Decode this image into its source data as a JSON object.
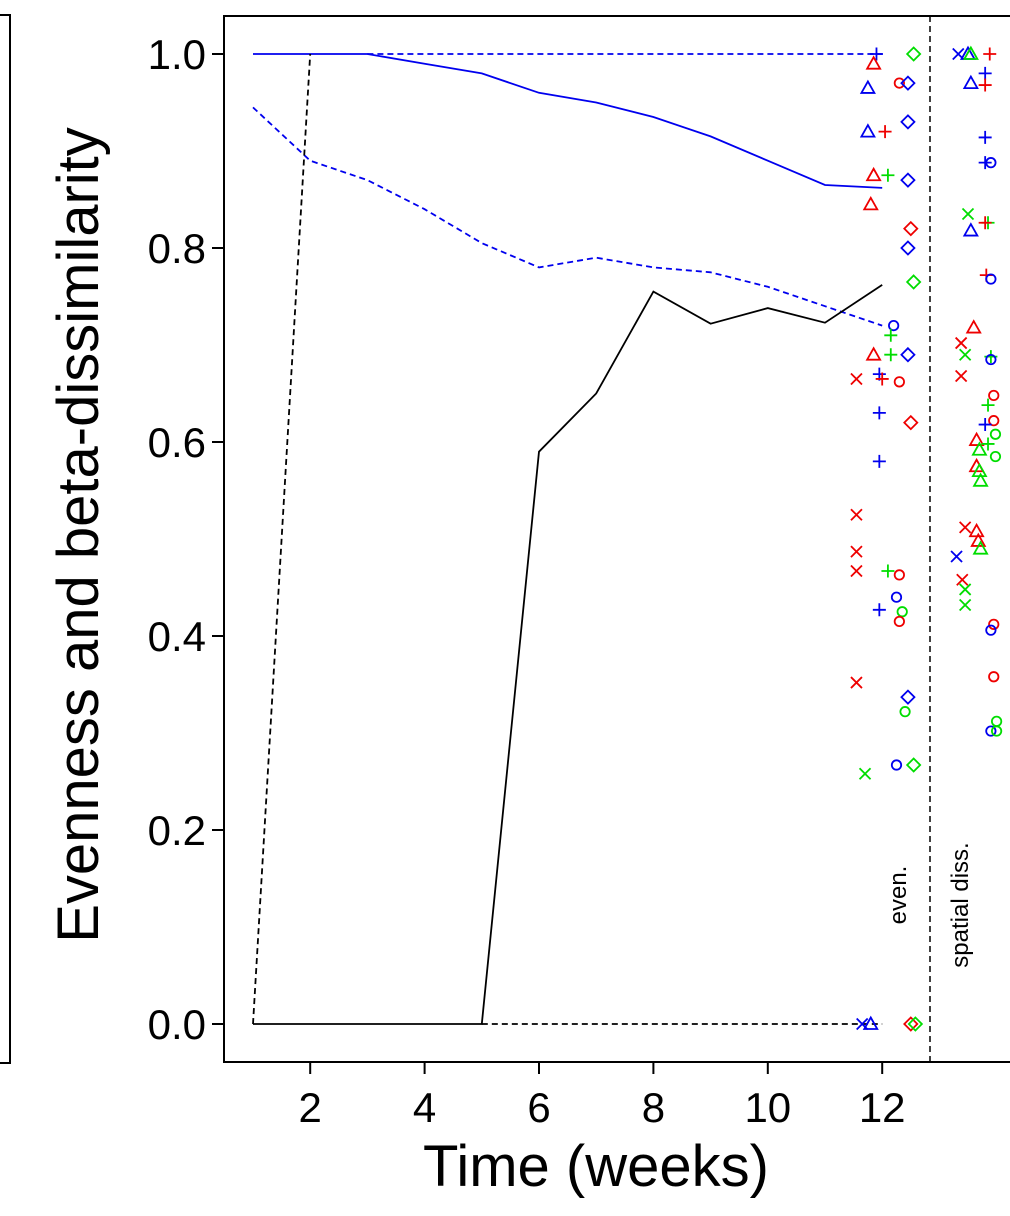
{
  "chart_data": {
    "type": "line",
    "xlabel": "Time (weeks)",
    "ylabel": "Evenness and beta-dissimilarity",
    "xlim": [
      0,
      13.6
    ],
    "ylim": [
      -0.03,
      1.04
    ],
    "xticks": [
      2,
      4,
      6,
      8,
      10,
      12
    ],
    "yticks": [
      0.0,
      0.2,
      0.4,
      0.6,
      0.8,
      1.0
    ],
    "xtick_labels": [
      "2",
      "4",
      "6",
      "8",
      "10",
      "12"
    ],
    "ytick_labels": [
      "0.0",
      "0.2",
      "0.4",
      "0.6",
      "0.8",
      "1.0"
    ],
    "grid": false,
    "panel_labels": [
      "even.",
      "spatial diss."
    ],
    "series": [
      {
        "style": "solid",
        "color": "#0000ee",
        "x": [
          1,
          2,
          3,
          4,
          5,
          6,
          7,
          8,
          9,
          10,
          11,
          12
        ],
        "y": [
          1.0,
          1.0,
          1.0,
          0.99,
          0.98,
          0.96,
          0.95,
          0.935,
          0.915,
          0.89,
          0.865,
          0.862
        ]
      },
      {
        "style": "dashed",
        "color": "#0000ee",
        "x": [
          1,
          2,
          3,
          4,
          5,
          6,
          7,
          8,
          9,
          10,
          11,
          12
        ],
        "y": [
          0.945,
          0.89,
          0.87,
          0.84,
          0.805,
          0.78,
          0.79,
          0.78,
          0.775,
          0.76,
          0.74,
          0.72
        ]
      },
      {
        "style": "dashed",
        "color": "#0000ee",
        "x": [
          3,
          12
        ],
        "y": [
          1.0,
          1.0
        ]
      },
      {
        "style": "solid",
        "color": "#000000",
        "x": [
          1,
          2,
          3,
          4,
          5,
          6,
          7,
          8,
          9,
          10,
          11,
          12
        ],
        "y": [
          0.0,
          0.0,
          0.0,
          0.0,
          0.0,
          0.59,
          0.65,
          0.755,
          0.722,
          0.738,
          0.723,
          0.762
        ]
      },
      {
        "style": "dashed",
        "color": "#000000",
        "x": [
          1,
          2
        ],
        "y": [
          0.0,
          1.0
        ]
      },
      {
        "style": "dashed",
        "color": "#000000",
        "x": [
          5,
          12
        ],
        "y": [
          0.0,
          0.0
        ]
      }
    ],
    "scatter_colors": {
      "red": "#ee0000",
      "blue": "#0000ee",
      "green": "#00dd00"
    },
    "scatter_points": [
      {
        "x": 11.9,
        "y": 1.0,
        "shape": "plus",
        "color": "blue"
      },
      {
        "x": 12.55,
        "y": 1.0,
        "shape": "diamond",
        "color": "green"
      },
      {
        "x": 11.85,
        "y": 0.99,
        "shape": "triangle",
        "color": "red"
      },
      {
        "x": 12.3,
        "y": 0.97,
        "shape": "circle",
        "color": "red"
      },
      {
        "x": 12.45,
        "y": 0.97,
        "shape": "diamond",
        "color": "blue"
      },
      {
        "x": 11.75,
        "y": 0.965,
        "shape": "triangle",
        "color": "blue"
      },
      {
        "x": 12.45,
        "y": 0.93,
        "shape": "diamond",
        "color": "blue"
      },
      {
        "x": 11.75,
        "y": 0.92,
        "shape": "triangle",
        "color": "blue"
      },
      {
        "x": 12.05,
        "y": 0.92,
        "shape": "plus",
        "color": "red"
      },
      {
        "x": 11.85,
        "y": 0.875,
        "shape": "triangle",
        "color": "red"
      },
      {
        "x": 12.1,
        "y": 0.875,
        "shape": "plus",
        "color": "green"
      },
      {
        "x": 12.45,
        "y": 0.87,
        "shape": "diamond",
        "color": "blue"
      },
      {
        "x": 11.8,
        "y": 0.845,
        "shape": "triangle",
        "color": "red"
      },
      {
        "x": 12.5,
        "y": 0.82,
        "shape": "diamond",
        "color": "red"
      },
      {
        "x": 12.45,
        "y": 0.8,
        "shape": "diamond",
        "color": "blue"
      },
      {
        "x": 12.55,
        "y": 0.765,
        "shape": "diamond",
        "color": "green"
      },
      {
        "x": 12.2,
        "y": 0.72,
        "shape": "circle",
        "color": "blue"
      },
      {
        "x": 12.15,
        "y": 0.71,
        "shape": "plus",
        "color": "green"
      },
      {
        "x": 11.85,
        "y": 0.69,
        "shape": "triangle",
        "color": "red"
      },
      {
        "x": 12.15,
        "y": 0.69,
        "shape": "plus",
        "color": "green"
      },
      {
        "x": 12.45,
        "y": 0.69,
        "shape": "diamond",
        "color": "blue"
      },
      {
        "x": 11.55,
        "y": 0.665,
        "shape": "cross",
        "color": "red"
      },
      {
        "x": 11.95,
        "y": 0.67,
        "shape": "plus",
        "color": "blue"
      },
      {
        "x": 12.0,
        "y": 0.665,
        "shape": "plus",
        "color": "red"
      },
      {
        "x": 12.3,
        "y": 0.662,
        "shape": "circle",
        "color": "red"
      },
      {
        "x": 11.95,
        "y": 0.63,
        "shape": "plus",
        "color": "blue"
      },
      {
        "x": 12.5,
        "y": 0.62,
        "shape": "diamond",
        "color": "red"
      },
      {
        "x": 11.95,
        "y": 0.58,
        "shape": "plus",
        "color": "blue"
      },
      {
        "x": 11.55,
        "y": 0.525,
        "shape": "cross",
        "color": "red"
      },
      {
        "x": 11.55,
        "y": 0.487,
        "shape": "cross",
        "color": "red"
      },
      {
        "x": 11.55,
        "y": 0.467,
        "shape": "cross",
        "color": "red"
      },
      {
        "x": 12.1,
        "y": 0.467,
        "shape": "plus",
        "color": "green"
      },
      {
        "x": 12.3,
        "y": 0.463,
        "shape": "circle",
        "color": "red"
      },
      {
        "x": 12.25,
        "y": 0.44,
        "shape": "circle",
        "color": "blue"
      },
      {
        "x": 11.95,
        "y": 0.427,
        "shape": "plus",
        "color": "blue"
      },
      {
        "x": 12.35,
        "y": 0.425,
        "shape": "circle",
        "color": "green"
      },
      {
        "x": 12.3,
        "y": 0.415,
        "shape": "circle",
        "color": "red"
      },
      {
        "x": 11.55,
        "y": 0.352,
        "shape": "cross",
        "color": "red"
      },
      {
        "x": 12.45,
        "y": 0.337,
        "shape": "diamond",
        "color": "blue"
      },
      {
        "x": 12.4,
        "y": 0.322,
        "shape": "circle",
        "color": "green"
      },
      {
        "x": 12.25,
        "y": 0.267,
        "shape": "circle",
        "color": "blue"
      },
      {
        "x": 12.55,
        "y": 0.267,
        "shape": "diamond",
        "color": "green"
      },
      {
        "x": 11.7,
        "y": 0.258,
        "shape": "cross",
        "color": "green"
      },
      {
        "x": 11.65,
        "y": 0.0,
        "shape": "cross",
        "color": "blue"
      },
      {
        "x": 11.8,
        "y": 0.0,
        "shape": "triangle",
        "color": "blue"
      },
      {
        "x": 12.5,
        "y": 0.0,
        "shape": "diamond",
        "color": "red"
      },
      {
        "x": 12.58,
        "y": 0.0,
        "shape": "diamond",
        "color": "green"
      },
      {
        "x": 13.33,
        "y": 1.0,
        "shape": "cross",
        "color": "blue"
      },
      {
        "x": 13.5,
        "y": 1.0,
        "shape": "triangle",
        "color": "blue"
      },
      {
        "x": 13.55,
        "y": 1.0,
        "shape": "triangle",
        "color": "green"
      },
      {
        "x": 13.88,
        "y": 1.0,
        "shape": "plus",
        "color": "red"
      },
      {
        "x": 13.8,
        "y": 0.98,
        "shape": "plus",
        "color": "blue"
      },
      {
        "x": 13.55,
        "y": 0.97,
        "shape": "triangle",
        "color": "blue"
      },
      {
        "x": 13.8,
        "y": 0.968,
        "shape": "plus",
        "color": "red"
      },
      {
        "x": 13.8,
        "y": 0.914,
        "shape": "plus",
        "color": "blue"
      },
      {
        "x": 13.8,
        "y": 0.888,
        "shape": "plus",
        "color": "blue"
      },
      {
        "x": 13.9,
        "y": 0.888,
        "shape": "circle",
        "color": "blue"
      },
      {
        "x": 13.5,
        "y": 0.835,
        "shape": "cross",
        "color": "green"
      },
      {
        "x": 13.55,
        "y": 0.818,
        "shape": "triangle",
        "color": "blue"
      },
      {
        "x": 13.85,
        "y": 0.826,
        "shape": "plus",
        "color": "green"
      },
      {
        "x": 13.8,
        "y": 0.826,
        "shape": "plus",
        "color": "red"
      },
      {
        "x": 13.82,
        "y": 0.772,
        "shape": "plus",
        "color": "red"
      },
      {
        "x": 13.9,
        "y": 0.768,
        "shape": "circle",
        "color": "blue"
      },
      {
        "x": 13.6,
        "y": 0.718,
        "shape": "triangle",
        "color": "red"
      },
      {
        "x": 13.38,
        "y": 0.702,
        "shape": "cross",
        "color": "red"
      },
      {
        "x": 13.45,
        "y": 0.69,
        "shape": "cross",
        "color": "green"
      },
      {
        "x": 13.9,
        "y": 0.688,
        "shape": "plus",
        "color": "green"
      },
      {
        "x": 13.9,
        "y": 0.685,
        "shape": "circle",
        "color": "blue"
      },
      {
        "x": 13.38,
        "y": 0.668,
        "shape": "cross",
        "color": "red"
      },
      {
        "x": 13.95,
        "y": 0.648,
        "shape": "circle",
        "color": "red"
      },
      {
        "x": 13.85,
        "y": 0.638,
        "shape": "plus",
        "color": "green"
      },
      {
        "x": 13.95,
        "y": 0.622,
        "shape": "circle",
        "color": "red"
      },
      {
        "x": 13.8,
        "y": 0.618,
        "shape": "plus",
        "color": "blue"
      },
      {
        "x": 13.98,
        "y": 0.608,
        "shape": "circle",
        "color": "green"
      },
      {
        "x": 13.65,
        "y": 0.602,
        "shape": "triangle",
        "color": "red"
      },
      {
        "x": 13.85,
        "y": 0.598,
        "shape": "plus",
        "color": "green"
      },
      {
        "x": 13.7,
        "y": 0.592,
        "shape": "triangle",
        "color": "green"
      },
      {
        "x": 13.98,
        "y": 0.585,
        "shape": "circle",
        "color": "green"
      },
      {
        "x": 13.65,
        "y": 0.575,
        "shape": "triangle",
        "color": "red"
      },
      {
        "x": 13.7,
        "y": 0.57,
        "shape": "triangle",
        "color": "green"
      },
      {
        "x": 13.72,
        "y": 0.56,
        "shape": "triangle",
        "color": "green"
      },
      {
        "x": 13.45,
        "y": 0.512,
        "shape": "cross",
        "color": "red"
      },
      {
        "x": 13.65,
        "y": 0.508,
        "shape": "triangle",
        "color": "red"
      },
      {
        "x": 13.68,
        "y": 0.498,
        "shape": "triangle",
        "color": "red"
      },
      {
        "x": 13.72,
        "y": 0.49,
        "shape": "triangle",
        "color": "green"
      },
      {
        "x": 13.3,
        "y": 0.482,
        "shape": "cross",
        "color": "blue"
      },
      {
        "x": 13.4,
        "y": 0.458,
        "shape": "cross",
        "color": "red"
      },
      {
        "x": 13.45,
        "y": 0.448,
        "shape": "cross",
        "color": "green"
      },
      {
        "x": 13.45,
        "y": 0.432,
        "shape": "cross",
        "color": "green"
      },
      {
        "x": 13.95,
        "y": 0.412,
        "shape": "circle",
        "color": "red"
      },
      {
        "x": 13.9,
        "y": 0.406,
        "shape": "circle",
        "color": "blue"
      },
      {
        "x": 13.95,
        "y": 0.358,
        "shape": "circle",
        "color": "red"
      },
      {
        "x": 14.0,
        "y": 0.312,
        "shape": "circle",
        "color": "green"
      },
      {
        "x": 13.9,
        "y": 0.302,
        "shape": "circle",
        "color": "blue"
      },
      {
        "x": 14.0,
        "y": 0.302,
        "shape": "circle",
        "color": "green"
      }
    ]
  }
}
